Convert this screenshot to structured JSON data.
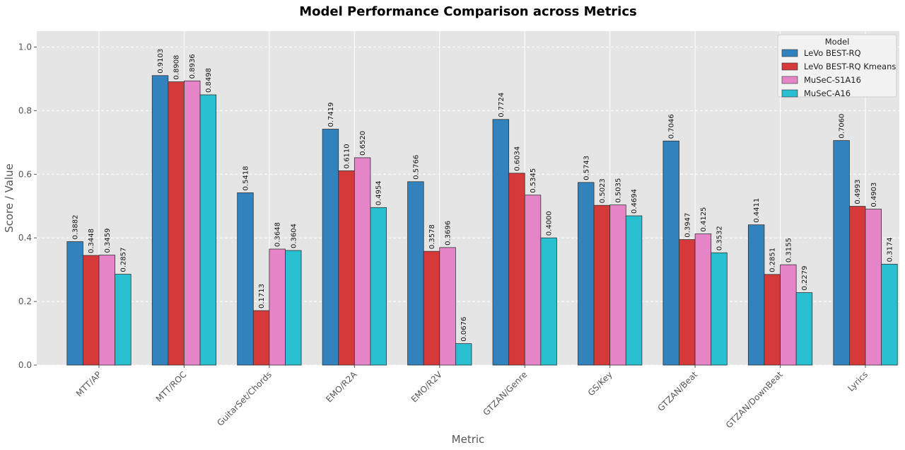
{
  "chart_data": {
    "type": "bar",
    "title": "Model Performance Comparison across Metrics",
    "xlabel": "Metric",
    "ylabel": "Score / Value",
    "ylim": [
      0,
      1.05
    ],
    "yticks": [
      "0.0",
      "0.2",
      "0.4",
      "0.6",
      "0.8",
      "1.0"
    ],
    "grid": true,
    "legend_title": "Model",
    "legend_position": "top-right",
    "categories": [
      "MTT/AP",
      "MTT/ROC",
      "GuitarSet/Chords",
      "EMO/R2A",
      "EMO/R2V",
      "GTZAN/Genre",
      "GS/Key",
      "GTZAN/Beat",
      "GTZAN/DownBeat",
      "Lyrics"
    ],
    "series": [
      {
        "name": "LeVo BEST-RQ",
        "color": "#3182bd",
        "values": [
          0.3882,
          0.9103,
          0.5418,
          0.7419,
          0.5766,
          0.7724,
          0.5743,
          0.7046,
          0.4411,
          0.706
        ],
        "labels": [
          "0.3882",
          "0.9103",
          "0.5418",
          "0.7419",
          "0.5766",
          "0.7724",
          "0.5743",
          "0.7046",
          "0.4411",
          "0.7060"
        ]
      },
      {
        "name": "LeVo BEST-RQ Kmeans",
        "color": "#d6393a",
        "values": [
          0.3448,
          0.8908,
          0.1713,
          0.611,
          0.3578,
          0.6034,
          0.5023,
          0.3947,
          0.2851,
          0.4993
        ],
        "labels": [
          "0.3448",
          "0.8908",
          "0.1713",
          "0.6110",
          "0.3578",
          "0.6034",
          "0.5023",
          "0.3947",
          "0.2851",
          "0.4993"
        ]
      },
      {
        "name": "MuSeC-S1A16",
        "color": "#e585c8",
        "values": [
          0.3459,
          0.8936,
          0.3648,
          0.652,
          0.3696,
          0.5345,
          0.5035,
          0.4125,
          0.3155,
          0.4903
        ],
        "labels": [
          "0.3459",
          "0.8936",
          "0.3648",
          "0.6520",
          "0.3696",
          "0.5345",
          "0.5035",
          "0.4125",
          "0.3155",
          "0.4903"
        ]
      },
      {
        "name": "MuSeC-A16",
        "color": "#28bfd0",
        "values": [
          0.2857,
          0.8498,
          0.3604,
          0.4954,
          0.0676,
          0.4,
          0.4694,
          0.3532,
          0.2279,
          0.3174
        ],
        "labels": [
          "0.2857",
          "0.8498",
          "0.3604",
          "0.4954",
          "0.0676",
          "0.4000",
          "0.4694",
          "0.3532",
          "0.2279",
          "0.3174"
        ]
      }
    ]
  }
}
